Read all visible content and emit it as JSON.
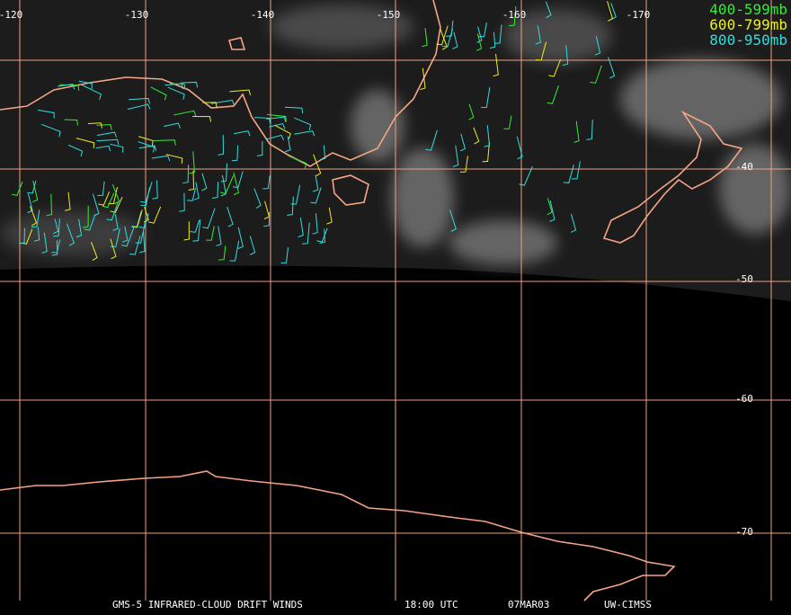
{
  "map": {
    "longitude_labels": [
      "-120",
      "-130",
      "-140",
      "-150",
      "-160",
      "-170"
    ],
    "latitude_labels": [
      "-40",
      "-50",
      "-60",
      "-70"
    ],
    "legend": [
      {
        "label": "400-599mb",
        "color": "#33ee33"
      },
      {
        "label": "600-799mb",
        "color": "#eeee22"
      },
      {
        "label": "800-950mb",
        "color": "#33dddd"
      }
    ],
    "footer": [
      "GMS-5 INFRARED-CLOUD DRIFT WINDS",
      "18:00 UTC",
      "07MAR03",
      "UW-CIMSS"
    ]
  }
}
